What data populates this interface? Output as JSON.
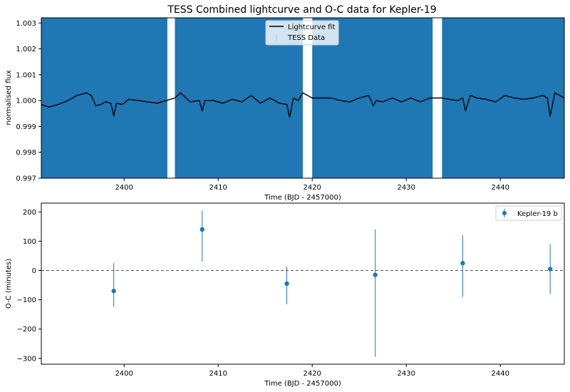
{
  "figure": {
    "title": "TESS Combined lightcurve and O-C data for Kepler-19"
  },
  "colors": {
    "data_blue": "#1f77b4",
    "fit_black": "#000000",
    "gap_white": "#ffffff",
    "zero_line": "#555555"
  },
  "chart_data": [
    {
      "type": "line",
      "panel": "top",
      "xlabel": "Time (BJD - 2457000)",
      "ylabel": "normalised flux",
      "xlim": [
        2391.2,
        2446.8
      ],
      "ylim": [
        0.997,
        1.0032
      ],
      "xticks": [
        2400,
        2410,
        2420,
        2430,
        2440
      ],
      "yticks": [
        0.997,
        0.998,
        0.999,
        1.0,
        1.001,
        1.002,
        1.003
      ],
      "ytick_labels": [
        "0.997",
        "0.998",
        "0.999",
        "1.000",
        "1.001",
        "1.002",
        "1.003"
      ],
      "legend": {
        "placement": "top-center",
        "entries": [
          "Lightcurve fit",
          "TESS Data"
        ]
      },
      "series": [
        {
          "name": "TESS Data",
          "kind": "dense-scatter",
          "segments": [
            [
              2391.2,
              2404.6
            ],
            [
              2405.4,
              2419.0
            ],
            [
              2420.0,
              2432.8
            ],
            [
              2433.8,
              2446.8
            ]
          ]
        },
        {
          "name": "Lightcurve fit",
          "kind": "line",
          "x": [
            2391.2,
            2392.0,
            2393.0,
            2394.0,
            2395.0,
            2396.0,
            2396.5,
            2397.0,
            2397.5,
            2398.0,
            2398.6,
            2398.9,
            2399.2,
            2399.8,
            2400.5,
            2401.5,
            2402.5,
            2403.5,
            2404.5,
            2405.4,
            2406.0,
            2407.0,
            2408.0,
            2408.3,
            2408.6,
            2409.5,
            2410.5,
            2411.5,
            2412.5,
            2413.5,
            2414.5,
            2415.5,
            2416.5,
            2417.3,
            2417.6,
            2418.0,
            2418.5,
            2419.0,
            2420.0,
            2421.0,
            2422.0,
            2423.0,
            2424.0,
            2425.0,
            2426.0,
            2426.5,
            2426.8,
            2427.5,
            2428.5,
            2429.5,
            2430.5,
            2431.5,
            2432.5,
            2433.8,
            2434.5,
            2435.5,
            2436.0,
            2436.3,
            2436.8,
            2437.5,
            2438.5,
            2439.5,
            2440.5,
            2441.5,
            2442.5,
            2443.5,
            2444.5,
            2445.0,
            2445.3,
            2445.8,
            2446.8
          ],
          "y": [
            0.99985,
            0.99975,
            0.99985,
            1.0,
            1.0002,
            1.0003,
            1.0002,
            0.9998,
            0.99985,
            0.99995,
            0.9999,
            0.9994,
            0.9999,
            0.99985,
            1.00005,
            1.0,
            0.99995,
            0.9999,
            1.0,
            1.0001,
            1.0003,
            0.99995,
            1.0,
            0.9996,
            1.0,
            1.0,
            0.9999,
            1.00005,
            0.99995,
            1.0002,
            0.9999,
            1.0001,
            0.9999,
            0.99985,
            0.99935,
            1.0001,
            1.0,
            1.0003,
            1.0001,
            1.0001,
            1.0001,
            1.0,
            0.99995,
            1.0001,
            1.0002,
            0.9998,
            1.0,
            0.99995,
            1.0001,
            0.99995,
            1.0001,
            0.99995,
            1.0001,
            1.0001,
            1.00005,
            1.0,
            1.0001,
            0.9996,
            1.0002,
            1.0001,
            1.00005,
            0.99995,
            1.0002,
            1.0001,
            1.00005,
            1.0001,
            1.0002,
            1.0001,
            0.9994,
            1.0003,
            1.0001
          ]
        }
      ]
    },
    {
      "type": "scatter",
      "panel": "bottom",
      "xlabel": "Time (BJD - 2457000)",
      "ylabel": "O-C (minutes)",
      "xlim": [
        2391.2,
        2446.8
      ],
      "ylim": [
        -320,
        230
      ],
      "xticks": [
        2400,
        2410,
        2420,
        2430,
        2440
      ],
      "yticks": [
        -300,
        -200,
        -100,
        0,
        100,
        200
      ],
      "ytick_labels": [
        "−300",
        "−200",
        "−100",
        "0",
        "100",
        "200"
      ],
      "reference_line": {
        "y": 0,
        "style": "dashed"
      },
      "legend": {
        "placement": "top-right",
        "entries": [
          "Kepler-19 b"
        ]
      },
      "series": [
        {
          "name": "Kepler-19 b",
          "x": [
            2398.9,
            2408.3,
            2417.3,
            2426.7,
            2436.0,
            2445.3
          ],
          "y": [
            -70,
            140,
            -45,
            -15,
            25,
            5
          ],
          "yerr_low": [
            55,
            110,
            70,
            280,
            115,
            85
          ],
          "yerr_high": [
            95,
            65,
            58,
            155,
            95,
            85
          ]
        }
      ]
    }
  ]
}
